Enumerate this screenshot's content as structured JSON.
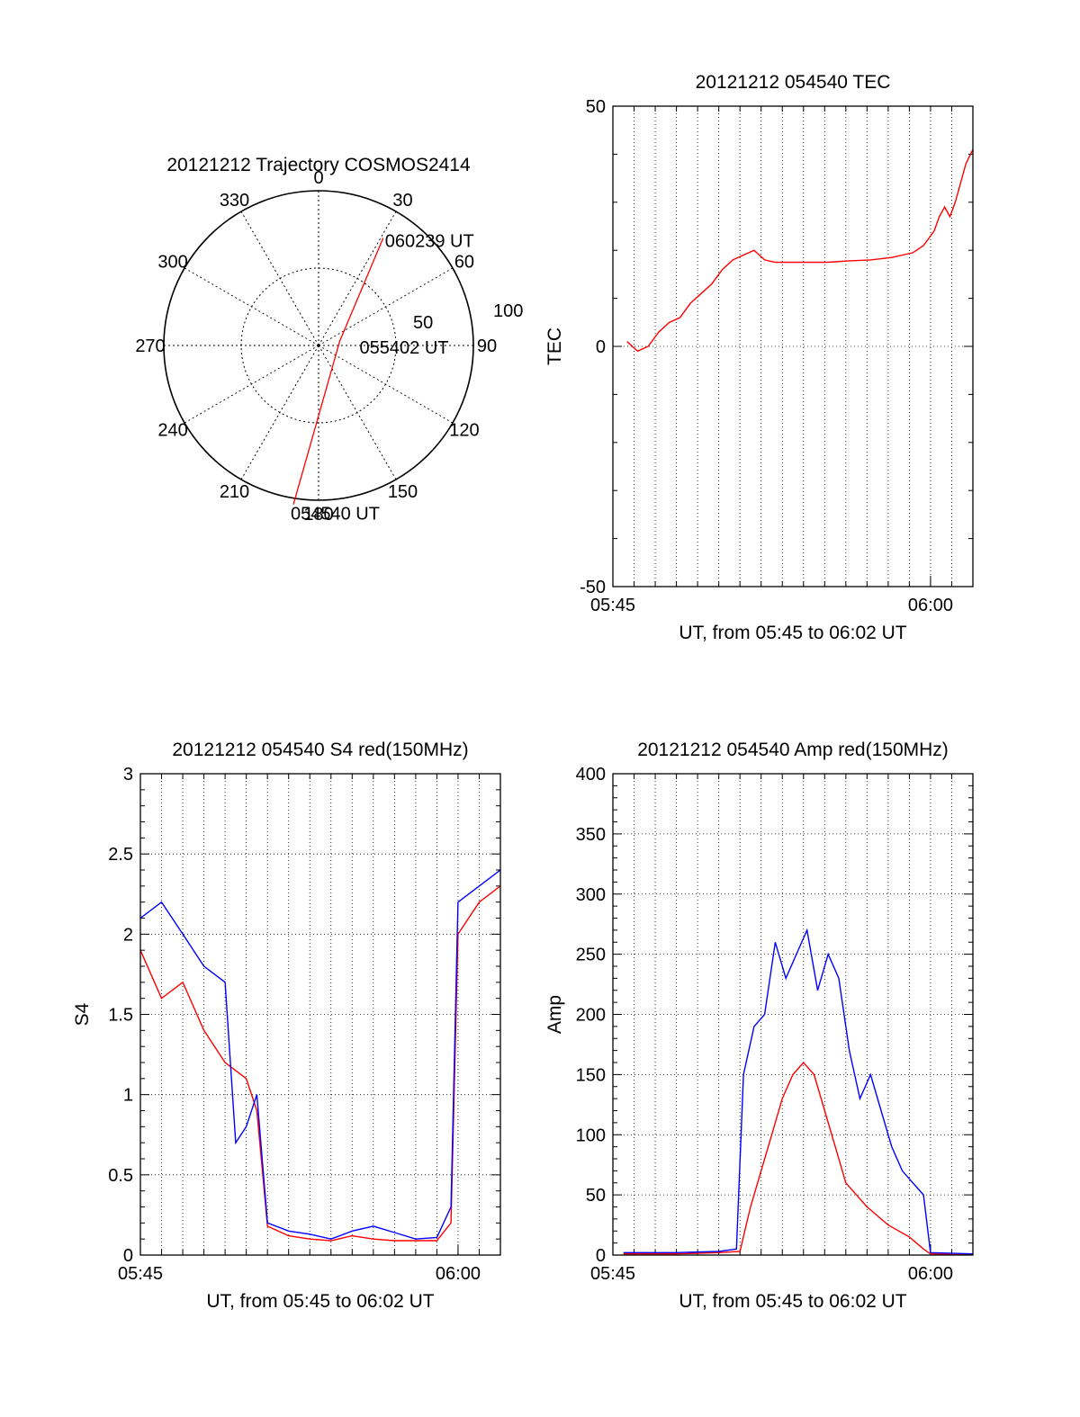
{
  "chart_data": [
    {
      "id": "trajectory",
      "type": "polar",
      "title": "20121212 Trajectory COSMOS2414",
      "azimuth_labels": [
        "0",
        "30",
        "60",
        "90",
        "120",
        "150",
        "180",
        "210",
        "240",
        "270",
        "300",
        "330"
      ],
      "radius_labels": [
        "50",
        "100"
      ],
      "radius_max": 100,
      "grid": true,
      "series": [
        {
          "color": "#ff0000",
          "points": [
            {
              "az": 31,
              "r": 81
            },
            {
              "az": 78,
              "r": 14
            },
            {
              "az": 189,
              "r": 104
            }
          ]
        }
      ],
      "annotations": [
        {
          "text": "060239 UT",
          "az": 31,
          "r": 81
        },
        {
          "text": "055402 UT",
          "az": 78,
          "r": 14
        },
        {
          "text": "054540 UT",
          "az": 189,
          "r": 104
        }
      ]
    },
    {
      "id": "tec",
      "type": "line",
      "title": "20121212 054540 TEC",
      "xlabel": "UT, from 05:45 to 06:02 UT",
      "ylabel": "TEC",
      "xlim": [
        "05:45",
        "06:02"
      ],
      "ylim": [
        -50,
        50
      ],
      "x_ticks": [
        "05:45",
        "06:00"
      ],
      "y_ticks": [
        "-50",
        "0",
        "50"
      ],
      "grid": true,
      "series": [
        {
          "color": "#ff0000",
          "x": [
            "05:45:40",
            "05:46:10",
            "05:46:40",
            "05:47:10",
            "05:47:40",
            "05:48:10",
            "05:48:40",
            "05:49:10",
            "05:49:40",
            "05:50:10",
            "05:50:40",
            "05:51:10",
            "05:51:40",
            "05:52:10",
            "05:52:40",
            "05:53:10",
            "05:54:10",
            "05:55:10",
            "05:56:10",
            "05:57:10",
            "05:58:10",
            "05:59:10",
            "05:59:40",
            "06:00:10",
            "06:00:25",
            "06:00:40",
            "06:00:55",
            "06:01:10",
            "06:01:40",
            "06:02:00"
          ],
          "y": [
            1,
            -1,
            0,
            3,
            5,
            6,
            9,
            11,
            13,
            16,
            18,
            19,
            20,
            18,
            17.5,
            17.5,
            17.5,
            17.5,
            17.8,
            18,
            18.5,
            19.5,
            21,
            24,
            27,
            29,
            27,
            30,
            38,
            41
          ]
        }
      ]
    },
    {
      "id": "s4",
      "type": "line",
      "title": "20121212 054540 S4 red(150MHz)",
      "xlabel": "UT, from 05:45 to 06:02 UT",
      "ylabel": "S4",
      "xlim": [
        "05:45",
        "06:02"
      ],
      "ylim": [
        0,
        3
      ],
      "x_ticks": [
        "05:45",
        "06:00"
      ],
      "y_ticks": [
        "0",
        "0.5",
        "1",
        "1.5",
        "2",
        "2.5",
        "3"
      ],
      "grid": true,
      "series": [
        {
          "color": "#ff0000",
          "x": [
            "05:45:00",
            "05:46:00",
            "05:47:00",
            "05:48:00",
            "05:49:00",
            "05:50:00",
            "05:50:30",
            "05:51:00",
            "05:52:00",
            "05:53:00",
            "05:54:00",
            "05:55:00",
            "05:56:00",
            "05:57:00",
            "05:58:00",
            "05:59:00",
            "05:59:40",
            "06:00:00",
            "06:01:00",
            "06:02:00"
          ],
          "y": [
            1.9,
            1.6,
            1.7,
            1.4,
            1.2,
            1.1,
            0.9,
            0.18,
            0.12,
            0.1,
            0.09,
            0.12,
            0.1,
            0.09,
            0.09,
            0.09,
            0.2,
            2.0,
            2.2,
            2.3
          ]
        },
        {
          "color": "#0000ff",
          "x": [
            "05:45:00",
            "05:46:00",
            "05:47:00",
            "05:48:00",
            "05:49:00",
            "05:49:30",
            "05:50:00",
            "05:50:30",
            "05:51:00",
            "05:52:00",
            "05:53:00",
            "05:54:00",
            "05:55:00",
            "05:56:00",
            "05:57:00",
            "05:58:00",
            "05:59:00",
            "05:59:40",
            "06:00:00",
            "06:01:00",
            "06:02:00"
          ],
          "y": [
            2.1,
            2.2,
            2.0,
            1.8,
            1.7,
            0.7,
            0.8,
            1.0,
            0.2,
            0.15,
            0.13,
            0.1,
            0.15,
            0.18,
            0.14,
            0.1,
            0.11,
            0.3,
            2.2,
            2.3,
            2.4
          ]
        }
      ]
    },
    {
      "id": "amp",
      "type": "line",
      "title": "20121212 054540 Amp red(150MHz)",
      "xlabel": "UT, from 05:45 to 06:02 UT",
      "ylabel": "Amp",
      "xlim": [
        "05:45",
        "06:02"
      ],
      "ylim": [
        0,
        400
      ],
      "x_ticks": [
        "05:45",
        "06:00"
      ],
      "y_ticks": [
        "0",
        "50",
        "100",
        "150",
        "200",
        "250",
        "300",
        "350",
        "400"
      ],
      "grid": true,
      "series": [
        {
          "color": "#ff0000",
          "x": [
            "05:45:30",
            "05:48:00",
            "05:50:00",
            "05:51:00",
            "05:51:30",
            "05:52:00",
            "05:52:30",
            "05:53:00",
            "05:53:30",
            "05:54:00",
            "05:54:30",
            "05:55:00",
            "05:55:30",
            "05:56:00",
            "05:57:00",
            "05:58:00",
            "05:59:00",
            "05:59:40",
            "06:00:00",
            "06:02:00"
          ],
          "y": [
            1,
            1,
            2,
            3,
            40,
            70,
            100,
            130,
            150,
            160,
            150,
            120,
            90,
            60,
            40,
            25,
            15,
            5,
            1,
            0
          ]
        },
        {
          "color": "#0000ff",
          "x": [
            "05:45:30",
            "05:48:00",
            "05:50:00",
            "05:50:50",
            "05:51:10",
            "05:51:40",
            "05:52:10",
            "05:52:40",
            "05:53:10",
            "05:53:40",
            "05:54:10",
            "05:54:40",
            "05:55:10",
            "05:55:40",
            "05:56:10",
            "05:56:40",
            "05:57:10",
            "05:57:40",
            "05:58:10",
            "05:58:40",
            "05:59:10",
            "05:59:40",
            "06:00:00",
            "06:02:00"
          ],
          "y": [
            2,
            2,
            3,
            5,
            150,
            190,
            200,
            260,
            230,
            250,
            270,
            220,
            250,
            230,
            170,
            130,
            150,
            120,
            90,
            70,
            60,
            50,
            2,
            1
          ]
        }
      ]
    }
  ]
}
